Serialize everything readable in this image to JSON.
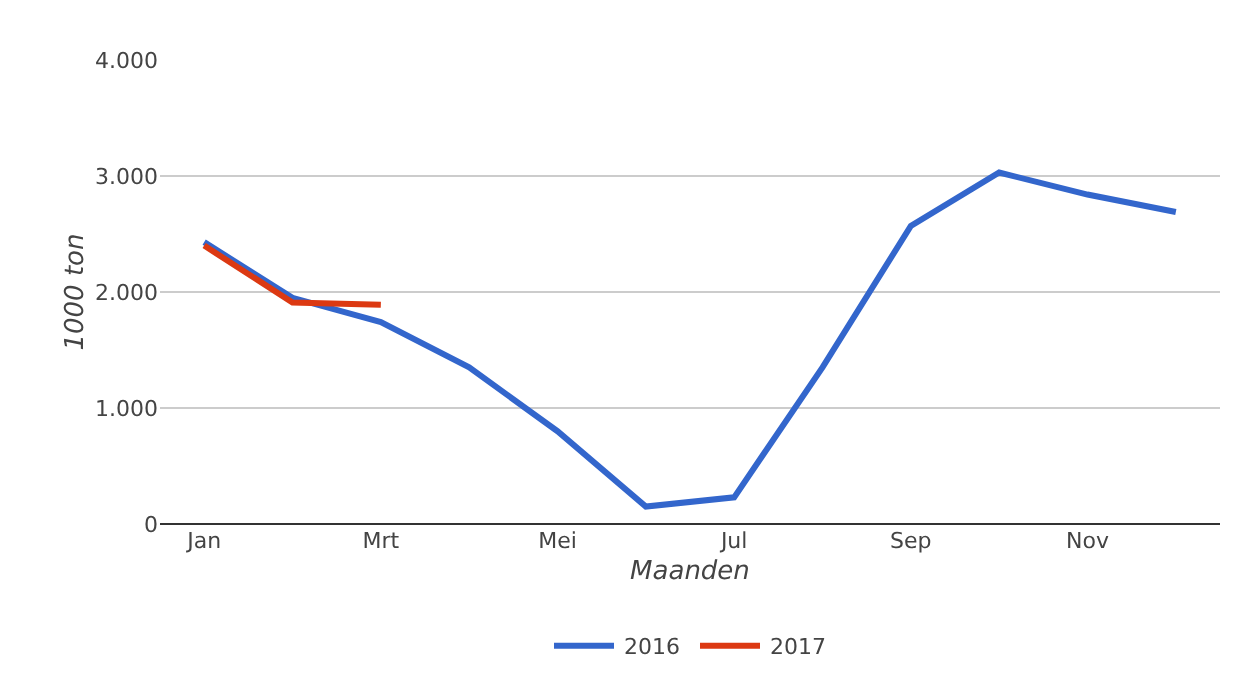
{
  "chart_data": {
    "type": "line",
    "xlabel": "Maanden",
    "ylabel": "1000 ton",
    "categories": [
      "Jan",
      null,
      "Mrt",
      null,
      "Mei",
      null,
      "Jul",
      null,
      "Sep",
      null,
      "Nov",
      null
    ],
    "series": [
      {
        "name": "2016",
        "color": "#3366cc",
        "values": [
          2430,
          1950,
          1740,
          1350,
          800,
          150,
          230,
          1350,
          2570,
          3030,
          2840,
          2690
        ]
      },
      {
        "name": "2017",
        "color": "#dc3912",
        "values": [
          2400,
          1910,
          1890,
          null,
          null,
          null,
          null,
          null,
          null,
          null,
          null,
          null
        ]
      }
    ],
    "ylim": [
      0,
      4000
    ],
    "yticks": [
      0,
      {
        "value": 1000,
        "label": "1.000"
      },
      {
        "value": 2000,
        "label": "2.000"
      },
      {
        "value": 3000,
        "label": "3.000"
      },
      {
        "value": 4000,
        "label": "4.000"
      }
    ],
    "grid": "y",
    "legend": "bottom",
    "marker": "none",
    "line_style": "solid"
  }
}
